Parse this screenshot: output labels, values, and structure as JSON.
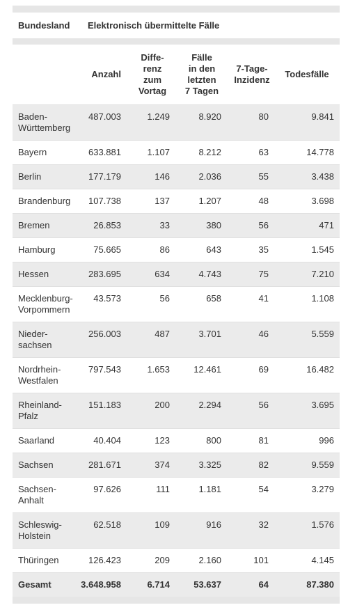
{
  "header": {
    "first_column": "Bundesland",
    "group": "Elektronisch übermittelte Fälle",
    "columns": [
      "Anzahl",
      "Diffe-\nrenz\nzum\nVortag",
      "Fälle\nin den\nletzten\n7 Tagen",
      "7-Tage-\nInzidenz",
      "Todesfälle"
    ]
  },
  "table": {
    "rows": [
      [
        "Baden-\nWürttemberg",
        "487.003",
        "1.249",
        "8.920",
        "80",
        "9.841"
      ],
      [
        "Bayern",
        "633.881",
        "1.107",
        "8.212",
        "63",
        "14.778"
      ],
      [
        "Berlin",
        "177.179",
        "146",
        "2.036",
        "55",
        "3.438"
      ],
      [
        "Brandenburg",
        "107.738",
        "137",
        "1.207",
        "48",
        "3.698"
      ],
      [
        "Bremen",
        "26.853",
        "33",
        "380",
        "56",
        "471"
      ],
      [
        "Hamburg",
        "75.665",
        "86",
        "643",
        "35",
        "1.545"
      ],
      [
        "Hessen",
        "283.695",
        "634",
        "4.743",
        "75",
        "7.210"
      ],
      [
        "Mecklenburg-\nVorpommern",
        "43.573",
        "56",
        "658",
        "41",
        "1.108"
      ],
      [
        "Nieder-\nsachsen",
        "256.003",
        "487",
        "3.701",
        "46",
        "5.559"
      ],
      [
        "Nordrhein-\nWestfalen",
        "797.543",
        "1.653",
        "12.461",
        "69",
        "16.482"
      ],
      [
        "Rheinland-\nPfalz",
        "151.183",
        "200",
        "2.294",
        "56",
        "3.695"
      ],
      [
        "Saarland",
        "40.404",
        "123",
        "800",
        "81",
        "996"
      ],
      [
        "Sachsen",
        "281.671",
        "374",
        "3.325",
        "82",
        "9.559"
      ],
      [
        "Sachsen-\nAnhalt",
        "97.626",
        "111",
        "1.181",
        "54",
        "3.279"
      ],
      [
        "Schleswig-\nHolstein",
        "62.518",
        "109",
        "916",
        "32",
        "1.576"
      ],
      [
        "Thüringen",
        "126.423",
        "209",
        "2.160",
        "101",
        "4.145"
      ]
    ],
    "total": [
      "Gesamt",
      "3.648.958",
      "6.714",
      "53.637",
      "64",
      "87.380"
    ]
  }
}
